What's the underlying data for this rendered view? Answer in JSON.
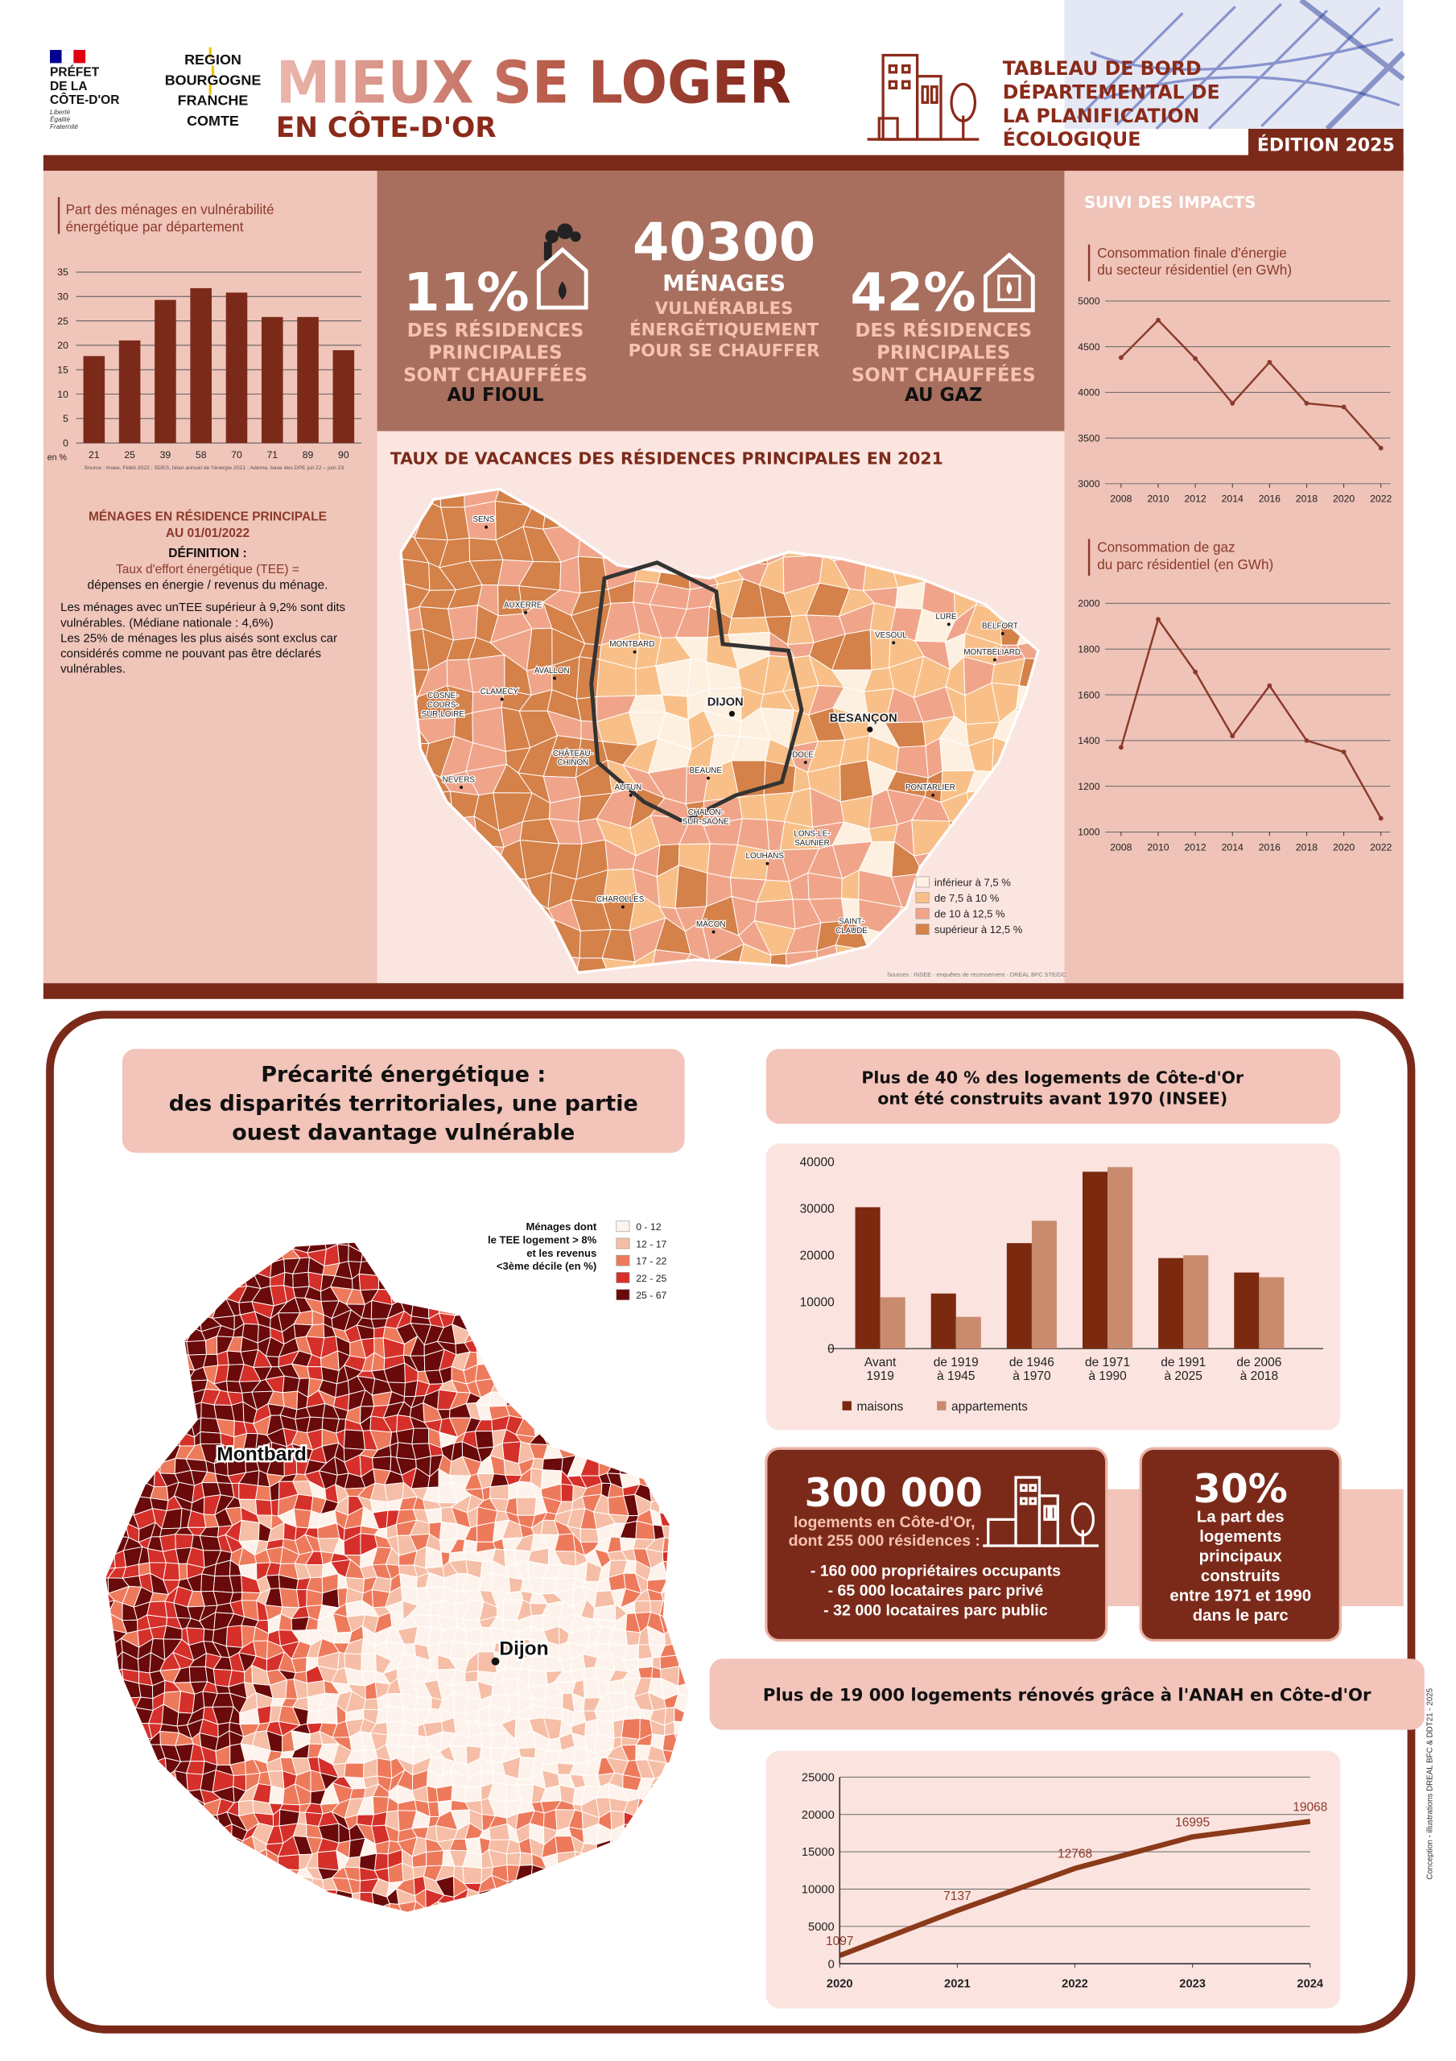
{
  "header": {
    "prefet": [
      "PRÉFET",
      "DE LA",
      "CÔTE-D'OR"
    ],
    "prefet_motto": [
      "Liberté",
      "Égalité",
      "Fraternité"
    ],
    "region": [
      "REGION",
      "BOURGOGNE",
      "FRANCHE",
      "COMTE"
    ],
    "title": "MIEUX SE LOGER",
    "subtitle": "EN CÔTE-D'OR",
    "dashboard": [
      "TABLEAU DE BORD",
      "DÉPARTEMENTAL DE",
      "LA PLANIFICATION",
      "ÉCOLOGIQUE"
    ],
    "edition": "ÉDITION 2025"
  },
  "stats": [
    {
      "value": "11%",
      "lines": [
        "DES RÉSIDENCES",
        "PRINCIPALES",
        "SONT CHAUFFÉES"
      ],
      "emphasis": "AU FIOUL"
    },
    {
      "value": "40300",
      "headline": "MÉNAGES",
      "lines": [
        "VULNÉRABLES",
        "ÉNERGÉTIQUEMENT",
        "POUR SE CHAUFFER"
      ]
    },
    {
      "value": "42%",
      "lines": [
        "DES RÉSIDENCES",
        "PRINCIPALES",
        "SONT CHAUFFÉES"
      ],
      "emphasis": "AU GAZ"
    }
  ],
  "definition": {
    "title": [
      "MÉNAGES EN RÉSIDENCE PRINCIPALE",
      "AU 01/01/2022"
    ],
    "label": "DÉFINITION :",
    "formula": [
      "Taux d'effort énergétique (TEE) =",
      "dépenses en énergie / revenus du ménage."
    ],
    "text": [
      "Les ménages avec unTEE supérieur à 9,2% sont dits",
      "vulnérables. (Médiane nationale : 4,6%)",
      "Les 25% de ménages les plus aisés sont exclus car",
      "considérés comme ne pouvant pas être déclarés",
      "vulnérables."
    ]
  },
  "impacts_title": "SUIVI DES IMPACTS",
  "vacancy_map": {
    "title": "TAUX DE VACANCES DES RÉSIDENCES PRINCIPALES EN 2021",
    "legend": [
      {
        "label": "inférieur à 7,5 %",
        "color": "#fdf0e0"
      },
      {
        "label": "de 7,5 à 10 %",
        "color": "#f8c088"
      },
      {
        "label": "de 10 à 12,5 %",
        "color": "#f0a58a"
      },
      {
        "label": "supérieur à 12,5 %",
        "color": "#d4814a"
      }
    ],
    "cities": [
      [
        "SENS"
      ],
      [
        "AUXERRE"
      ],
      [
        "AVALLON"
      ],
      [
        "CLAMECY"
      ],
      [
        "COSNE-",
        "COURS-",
        "SUR-LOIRE"
      ],
      [
        "MONTBARD"
      ],
      [
        "DIJON"
      ],
      [
        "BESANÇON"
      ],
      [
        "VESOUL"
      ],
      [
        "LURE"
      ],
      [
        "BELFORT"
      ],
      [
        "MONTBÉLIARD"
      ],
      [
        "DOLE"
      ],
      [
        "BEAUNE"
      ],
      [
        "AUTUN"
      ],
      [
        "CHÂTEAU-",
        "CHINON"
      ],
      [
        "NEVERS"
      ],
      [
        "PONTARLIER"
      ],
      [
        "CHALON-",
        "SUR-SAÔNE"
      ],
      [
        "LONS-LE-",
        "SAUNIER"
      ],
      [
        "LOUHANS"
      ],
      [
        "CHAROLLES"
      ],
      [
        "MÂCON"
      ],
      [
        "SAINT-",
        "CLAUDE"
      ]
    ],
    "source": "Sources : INSEE - enquêtes de recensement - DREAL BFC STE/DC"
  },
  "precarity_map": {
    "title": [
      "Précarité énergétique :",
      "des disparités territoriales, une partie",
      "ouest davantage vulnérable"
    ],
    "legend_title": [
      "Ménages dont",
      "le TEE logement > 8%",
      "et les revenus",
      "<3ème décile (en %)"
    ],
    "legend": [
      {
        "label": "0 - 12",
        "color": "#fdf3ec"
      },
      {
        "label": "12 - 17",
        "color": "#f6bea6"
      },
      {
        "label": "17 - 22",
        "color": "#ee7a5c"
      },
      {
        "label": "22 - 25",
        "color": "#d6302a"
      },
      {
        "label": "25 - 67",
        "color": "#6b0a0a"
      }
    ],
    "cities": [
      "Montbard",
      "Dijon"
    ]
  },
  "age_heading": [
    "Plus de 40 % des logements de Côte-d'Or",
    "ont été construits avant 1970 (INSEE)"
  ],
  "housing_box": {
    "value": "300 000",
    "lines": [
      "logements en Côte-d'Or,",
      "dont 255 000 résidences :"
    ],
    "bullets": [
      "- 160 000 propriétaires occupants",
      "- 65 000 locataires parc privé",
      "- 32 000 locataires parc public"
    ]
  },
  "share_box": {
    "value": "30%",
    "lines": [
      "La part des",
      "logements",
      "principaux",
      "construits",
      "entre 1971 et 1990",
      "dans le parc"
    ]
  },
  "anah_heading": "Plus de 19 000 logements rénovés grâce à l'ANAH en Côte-d'Or",
  "credit": "Conception - illustrations DREAL BFC & DDT21 - 2025",
  "chart_data": [
    {
      "type": "bar",
      "title": [
        "Part des ménages en vulnérabilité",
        "énergétique par département"
      ],
      "categories": [
        "21",
        "25",
        "39",
        "58",
        "70",
        "71",
        "89",
        "90"
      ],
      "values": [
        17.8,
        21,
        29.3,
        31.7,
        30.8,
        25.8,
        25.8,
        19
      ],
      "color": "#7b2a1a",
      "ylim": [
        0,
        35
      ],
      "yticks": [
        0,
        5,
        10,
        15,
        20,
        25,
        30,
        35
      ],
      "grid": true,
      "ylabel": "en %",
      "source": "Source : Insee, Fidéli 2022 ; SDES, bilan annuel de l'énergie 2021 ; Ademe, base des DPE juil 22 – juin 23"
    },
    {
      "type": "line",
      "title": [
        "Consommation finale d'énergie",
        "du secteur résidentiel (en GWh)"
      ],
      "x": [
        2008,
        2010,
        2012,
        2014,
        2016,
        2018,
        2020,
        2022
      ],
      "values": [
        4380,
        4790,
        4370,
        3880,
        4330,
        3880,
        3840,
        3390
      ],
      "color": "#8b3a2a",
      "xlim": [
        2007,
        2023
      ],
      "xticks": [
        2008,
        2010,
        2012,
        2014,
        2016,
        2018,
        2020,
        2022
      ],
      "ylim": [
        3000,
        5000
      ],
      "yticks": [
        3000,
        3500,
        4000,
        4500,
        5000
      ],
      "grid": true,
      "markers": true
    },
    {
      "type": "line",
      "title": [
        "Consommation de gaz",
        "du parc résidentiel (en GWh)"
      ],
      "x": [
        2008,
        2010,
        2012,
        2014,
        2016,
        2018,
        2020,
        2022
      ],
      "values": [
        1370,
        1930,
        1700,
        1420,
        1640,
        1400,
        1350,
        1060
      ],
      "color": "#8b3a2a",
      "xlim": [
        2007,
        2023
      ],
      "xticks": [
        2008,
        2010,
        2012,
        2014,
        2016,
        2018,
        2020,
        2022
      ],
      "ylim": [
        1000,
        2000
      ],
      "yticks": [
        1000,
        1200,
        1400,
        1600,
        1800,
        2000
      ],
      "grid": true,
      "markers": true
    },
    {
      "type": "bar",
      "categories": [
        "Avant 1919",
        "de 1919 à 1945",
        "de 1946 à 1970",
        "de 1971 à 1990",
        "de 1991 à 2025",
        "de 2006 à 2018"
      ],
      "series": [
        {
          "name": "maisons",
          "color": "#7b2a10",
          "values": [
            30300,
            11800,
            22600,
            37900,
            19400,
            16300
          ]
        },
        {
          "name": "appartements",
          "color": "#c98b6e",
          "values": [
            11000,
            6800,
            27400,
            38900,
            20000,
            15300
          ]
        }
      ],
      "ylim": [
        0,
        40000
      ],
      "yticks": [
        0,
        10000,
        20000,
        30000,
        40000
      ],
      "grid": false
    },
    {
      "type": "line",
      "x": [
        2020,
        2021,
        2022,
        2023,
        2024
      ],
      "values": [
        1097,
        7137,
        12768,
        16995,
        19068
      ],
      "color": "#8b3a1a",
      "xlim": [
        2020,
        2024
      ],
      "xticks": [
        2020,
        2021,
        2022,
        2023,
        2024
      ],
      "ylim": [
        0,
        25000
      ],
      "yticks": [
        0,
        5000,
        10000,
        15000,
        20000,
        25000
      ],
      "grid": true,
      "markers": false,
      "data_labels": true
    }
  ]
}
